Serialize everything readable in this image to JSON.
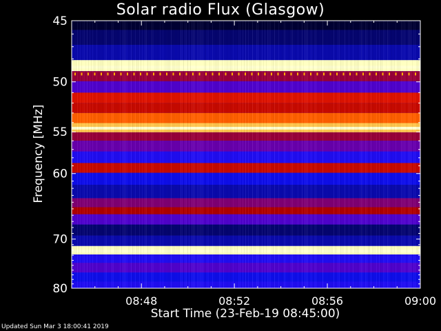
{
  "chart_data": {
    "type": "heatmap",
    "title": "Solar radio Flux (Glasgow)",
    "xlabel": "Start Time (23-Feb-19 08:45:00)",
    "ylabel": "Frequency [MHz]",
    "x_ticks": [
      "08:48",
      "08:52",
      "08:56",
      "09:00"
    ],
    "x_tick_minutes": [
      3,
      7,
      11,
      15
    ],
    "x_range_minutes": [
      0,
      15
    ],
    "y_ticks": [
      45,
      50,
      55,
      60,
      70,
      80
    ],
    "y_range": [
      45,
      80
    ],
    "bands": [
      {
        "freq": 45.2,
        "level": 0.0
      },
      {
        "freq": 46.2,
        "level": 0.05
      },
      {
        "freq": 47.5,
        "level": 0.1
      },
      {
        "freq": 48.7,
        "level": 1.0
      },
      {
        "freq": 49.4,
        "level": 0.45
      },
      {
        "freq": 50.5,
        "level": 0.3
      },
      {
        "freq": 51.5,
        "level": 0.6
      },
      {
        "freq": 52.5,
        "level": 0.55
      },
      {
        "freq": 53.5,
        "level": 0.75
      },
      {
        "freq": 54.6,
        "level": 0.9
      },
      {
        "freq": 55.5,
        "level": 0.45
      },
      {
        "freq": 56.5,
        "level": 0.35
      },
      {
        "freq": 58.0,
        "level": 0.2
      },
      {
        "freq": 59.3,
        "level": 0.55
      },
      {
        "freq": 60.5,
        "level": 0.15
      },
      {
        "freq": 62.5,
        "level": 0.1
      },
      {
        "freq": 64.3,
        "level": 0.4
      },
      {
        "freq": 65.2,
        "level": 0.5
      },
      {
        "freq": 66.5,
        "level": 0.3
      },
      {
        "freq": 68.5,
        "level": 0.05
      },
      {
        "freq": 70.3,
        "level": 0.1
      },
      {
        "freq": 72.2,
        "level": 1.0
      },
      {
        "freq": 73.5,
        "level": 0.2
      },
      {
        "freq": 75.5,
        "level": 0.3
      },
      {
        "freq": 77.5,
        "level": 0.15
      },
      {
        "freq": 79.5,
        "level": 0.2
      }
    ],
    "colormap": [
      "#000033",
      "#1010ff",
      "#6000c0",
      "#b00000",
      "#ff2000",
      "#ffa000",
      "#ffffc0"
    ]
  },
  "footer": {
    "updated": "Updated Sun Mar  3 18:00:41 2019"
  }
}
